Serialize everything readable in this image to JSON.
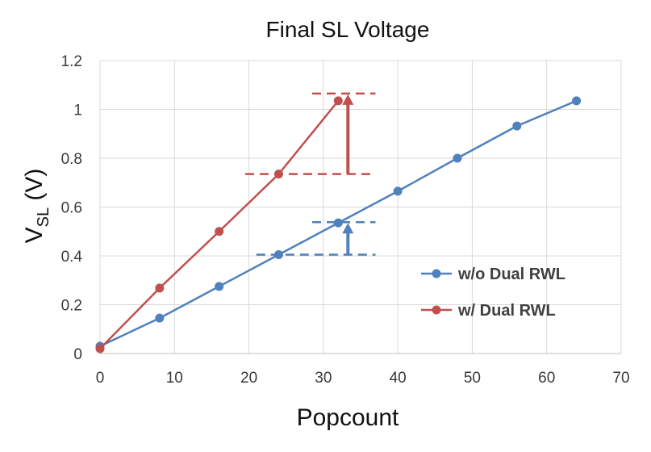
{
  "chart_data": {
    "type": "line",
    "title": "Final SL Voltage",
    "xlabel": "Popcount",
    "ylabel": {
      "main": "V",
      "subscript": "SL",
      "unit": " (V)"
    },
    "xlim": [
      0,
      70
    ],
    "ylim": [
      0,
      1.2
    ],
    "xticks": [
      0,
      10,
      20,
      30,
      40,
      50,
      60,
      70
    ],
    "yticks": [
      0,
      0.2,
      0.4,
      0.6,
      0.8,
      1,
      1.2
    ],
    "ytick_labels": [
      "0",
      "0.2",
      "0.4",
      "0.6",
      "0.8",
      "1",
      "1.2"
    ],
    "grid": true,
    "legend_position": "right",
    "series": [
      {
        "name": "w/o Dual RWL",
        "color": "#4F81BD",
        "x": [
          0,
          8,
          16,
          24,
          32,
          40,
          48,
          56,
          64
        ],
        "y": [
          0.03,
          0.145,
          0.275,
          0.405,
          0.535,
          0.665,
          0.8,
          0.932,
          1.035
        ]
      },
      {
        "name": "w/ Dual RWL",
        "color": "#C0504D",
        "x": [
          0,
          8,
          16,
          24,
          32
        ],
        "y": [
          0.02,
          0.268,
          0.5,
          0.735,
          1.035
        ]
      }
    ],
    "annotations": [
      {
        "kind": "dashed-lines-with-arrow",
        "color": "#C0504D",
        "low": {
          "y": 0.735,
          "x_from": 19.5,
          "x_to": 37
        },
        "high": {
          "y": 1.065,
          "x_from": 28.5,
          "x_to": 37
        },
        "arrow_x": 33.3,
        "arrow_from_y": 0.735,
        "arrow_to_y": 1.065
      },
      {
        "kind": "dashed-lines-with-arrow",
        "color": "#4F81BD",
        "low": {
          "y": 0.405,
          "x_from": 21,
          "x_to": 37
        },
        "high": {
          "y": 0.538,
          "x_from": 28.5,
          "x_to": 37
        },
        "arrow_x": 33.3,
        "arrow_from_y": 0.405,
        "arrow_to_y": 0.538
      }
    ]
  }
}
